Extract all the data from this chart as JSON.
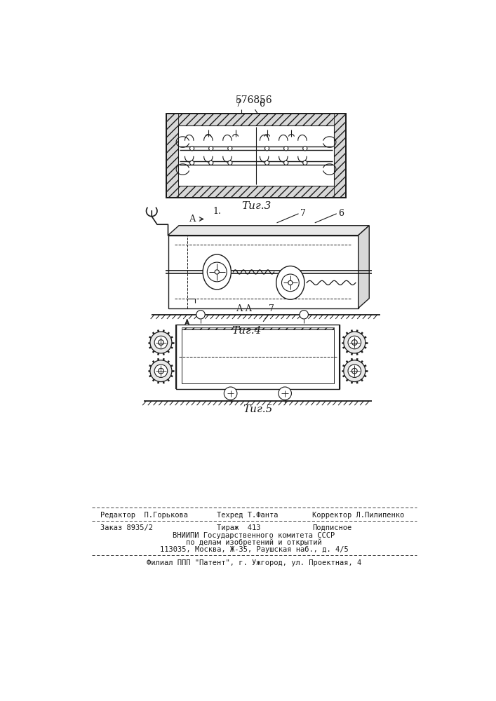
{
  "patent_number": "576856",
  "bg_color": "#ffffff",
  "line_color": "#1a1a1a",
  "fig3_label": "Τиг.3",
  "fig4_label": "Τиг.4",
  "fig5_label": "Τиг.5",
  "footer_line1_left": "Редактор  П.Горькова",
  "footer_line1_mid": "Техред Т.Фанта",
  "footer_line1_right": "Корректор Л.Пилипенко",
  "footer_line2_left": "Заказ 8935/2",
  "footer_line2_mid": "Тираж  413",
  "footer_line2_right": "Подписное",
  "footer_line3": "ВНИИПИ Государственного комитета СССР",
  "footer_line4": "по делам изобретений и открытий",
  "footer_line5": "113035, Москва, Ж-35, Раушская наб., д. 4/5",
  "footer_line6": "Филиал ППП \"Патент\", г. Ужгород, ул. Проектная, 4"
}
